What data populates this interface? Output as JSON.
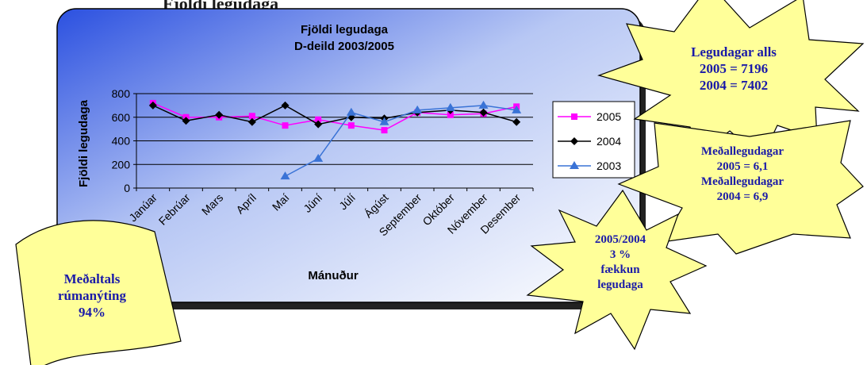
{
  "top_cutoff_text": "Fjöldi legudaga",
  "chart_data": {
    "type": "line",
    "title": "Fjöldi legudaga",
    "subtitle": "D-deild 2003/2005",
    "xlabel": "Mánuður",
    "ylabel": "Fjöldi legudaga",
    "ylim": [
      0,
      800
    ],
    "yticks": [
      "0",
      "200",
      "400",
      "600",
      "800"
    ],
    "categories": [
      "Janúar",
      "Febrúar",
      "Mars",
      "Apríl",
      "Maí",
      "Júní",
      "Júlí",
      "Ágúst",
      "September",
      "Október",
      "Nóvember",
      "Desember"
    ],
    "grid": true,
    "legend_position": "right",
    "series": [
      {
        "name": "2005",
        "color": "#ff00ff",
        "marker": "square",
        "values": [
          720,
          600,
          600,
          610,
          530,
          580,
          530,
          490,
          640,
          620,
          630,
          690
        ]
      },
      {
        "name": "2004",
        "color": "#000000",
        "marker": "diamond",
        "values": [
          700,
          570,
          620,
          560,
          700,
          540,
          600,
          590,
          640,
          660,
          640,
          560
        ]
      },
      {
        "name": "2003",
        "color": "#3a73d6",
        "marker": "triangle",
        "values": [
          null,
          null,
          null,
          null,
          100,
          250,
          640,
          560,
          660,
          680,
          700,
          660
        ]
      }
    ]
  },
  "callouts": {
    "total": {
      "lines": [
        "Legudagar alls",
        "2005 =  7196",
        "2004 =  7402"
      ]
    },
    "average_stay": {
      "lines": [
        "Meðallegudagar",
        "2005 = 6,1",
        "Meðallegudagar",
        "2004 = 6,9"
      ]
    },
    "decrease": {
      "lines": [
        "2005/2004",
        "3 %",
        "fækkun",
        "legudaga"
      ]
    },
    "occupancy": {
      "lines": [
        "Meðaltals",
        "rúmanýting",
        "94%"
      ]
    }
  },
  "colors": {
    "callout_fill": "#ffff99",
    "callout_text": "#1a1aa8",
    "panel_dark": "#2b50e0",
    "panel_light": "#ffffff"
  }
}
